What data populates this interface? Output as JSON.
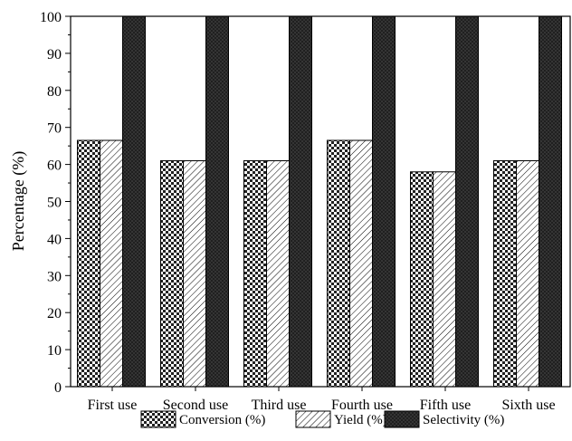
{
  "chart_data": {
    "type": "bar",
    "title": "",
    "xlabel": "",
    "ylabel": "Percentage (%)",
    "ylim": [
      0,
      100
    ],
    "yticks": [
      0,
      10,
      20,
      30,
      40,
      50,
      60,
      70,
      80,
      90,
      100
    ],
    "grid": false,
    "legend_position": "bottom",
    "categories": [
      "First use",
      "Second use",
      "Third use",
      "Fourth use",
      "Fifth use",
      "Sixth use"
    ],
    "series": [
      {
        "name": "Conversion (%)",
        "pattern": "checker",
        "values": [
          66.5,
          61,
          61,
          66.5,
          58,
          61
        ]
      },
      {
        "name": "Yield (%)",
        "pattern": "diagonal-hatch",
        "values": [
          66.5,
          61,
          61,
          66.5,
          58,
          61
        ]
      },
      {
        "name": "Selectivity (%)",
        "pattern": "dark-crosshatch",
        "values": [
          100,
          100,
          100,
          100,
          100,
          100
        ]
      }
    ]
  }
}
